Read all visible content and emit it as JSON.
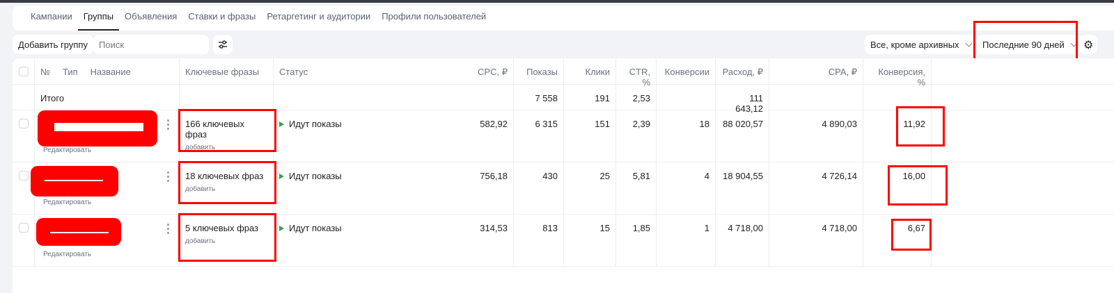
{
  "tabs": [
    "Кампании",
    "Группы",
    "Объявления",
    "Ставки и фразы",
    "Ретаргетинг и аудитории",
    "Профили пользователей"
  ],
  "active_tab": "Группы",
  "toolbar": {
    "add_group": "Добавить группу",
    "search_placeholder": "Поиск",
    "filter_status": "Все, кроме архивных",
    "period": "Последние 90 дней"
  },
  "columns": {
    "num": "№",
    "type": "Тип",
    "name": "Название",
    "keywords": "Ключевые фразы",
    "status": "Статус",
    "cpc": "CPC, ₽",
    "shows": "Показы",
    "clicks": "Клики",
    "ctr": "CTR, %",
    "conv": "Конверсии",
    "spend": "Расход, ₽",
    "cpa": "CPA, ₽",
    "convrate": "Конверсия, %"
  },
  "total": {
    "label": "Итого",
    "shows": "7 558",
    "clicks": "191",
    "ctr": "2,53",
    "spend": "111 643,12"
  },
  "rows": [
    {
      "keywords": "166 ключевых фраз",
      "add": "добавить",
      "status": "Идут показы",
      "cpc": "582,92",
      "shows": "6 315",
      "clicks": "151",
      "ctr": "2,39",
      "conv": "18",
      "spend": "88 020,57",
      "cpa": "4 890,03",
      "convrate": "11,92",
      "edit": "Редактировать"
    },
    {
      "keywords": "18 ключевых фраз",
      "add": "добавить",
      "status": "Идут показы",
      "cpc": "756,18",
      "shows": "430",
      "clicks": "25",
      "ctr": "5,81",
      "conv": "4",
      "spend": "18 904,55",
      "cpa": "4 726,14",
      "convrate": "16,00",
      "edit": "Редактировать"
    },
    {
      "keywords": "5 ключевых фраз",
      "add": "добавить",
      "status": "Идут показы",
      "cpc": "314,53",
      "shows": "813",
      "clicks": "15",
      "ctr": "1,85",
      "conv": "1",
      "spend": "4 718,00",
      "cpa": "4 718,00",
      "convrate": "6,67",
      "edit": "Редактировать"
    }
  ],
  "colors": {
    "status_green": "#2aa84a",
    "annotation_red": "#ff0000"
  }
}
